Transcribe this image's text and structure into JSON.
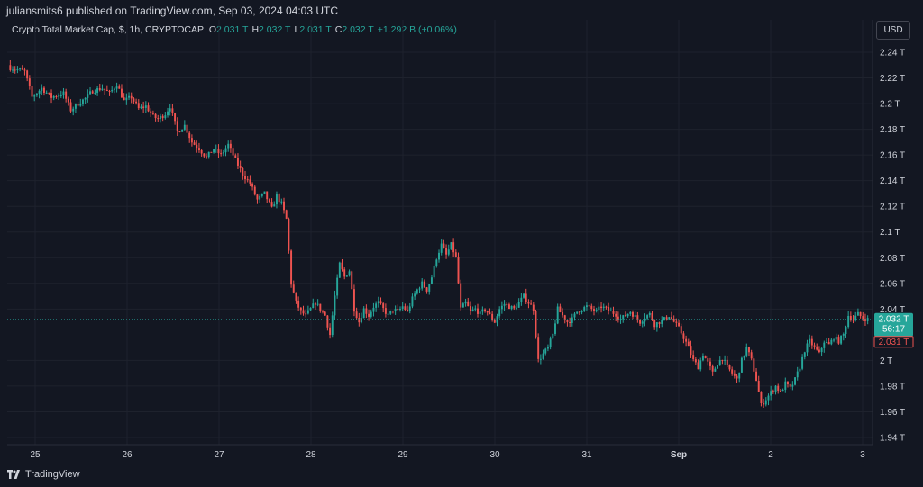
{
  "header": {
    "published_text": "juliansmits6 published on TradingView.com, Sep 03, 2024 04:03 UTC"
  },
  "legend": {
    "symbol": "Crypto Total Market Cap, $, 1h, CRYPTOCAP",
    "o_label": "O",
    "o_value": "2.031 T",
    "h_label": "H",
    "h_value": "2.032 T",
    "l_label": "L",
    "l_value": "2.031 T",
    "c_label": "C",
    "c_value": "2.032 T",
    "change": "+1.292 B (+0.06%)"
  },
  "currency_button": "USD",
  "price_labels": {
    "current": "2.032 T",
    "countdown": "56:17",
    "low": "2.031 T"
  },
  "footer": {
    "brand": "TradingView"
  },
  "colors": {
    "background": "#131722",
    "up": "#26a69a",
    "down": "#ef5350",
    "grid": "#1e222d",
    "text": "#d1d4dc"
  },
  "chart_data": {
    "type": "candlestick",
    "title": "Crypto Total Market Cap, $, 1h, CRYPTOCAP",
    "y_unit": "T",
    "ylim": [
      1.93,
      2.25
    ],
    "y_ticks": [
      "2.24 T",
      "2.22 T",
      "2.2 T",
      "2.18 T",
      "2.16 T",
      "2.14 T",
      "2.12 T",
      "2.1 T",
      "2.08 T",
      "2.06 T",
      "2.04 T",
      "2 T",
      "1.98 T",
      "1.96 T",
      "1.94 T"
    ],
    "y_tick_values": [
      2.24,
      2.22,
      2.2,
      2.18,
      2.16,
      2.14,
      2.12,
      2.1,
      2.08,
      2.06,
      2.04,
      2.0,
      1.98,
      1.96,
      1.94
    ],
    "x_ticks": [
      "25",
      "26",
      "27",
      "28",
      "29",
      "30",
      "31",
      "Sep",
      "2",
      "3"
    ],
    "grid": true,
    "last_price": 2.032,
    "close_path": [
      [
        0,
        2.228
      ],
      [
        6,
        2.225
      ],
      [
        9,
        2.205
      ],
      [
        13,
        2.212
      ],
      [
        17,
        2.205
      ],
      [
        22,
        2.208
      ],
      [
        25,
        2.195
      ],
      [
        28,
        2.2
      ],
      [
        31,
        2.204
      ],
      [
        34,
        2.21
      ],
      [
        38,
        2.212
      ],
      [
        41,
        2.208
      ],
      [
        44,
        2.215
      ],
      [
        47,
        2.202
      ],
      [
        50,
        2.205
      ],
      [
        53,
        2.196
      ],
      [
        56,
        2.198
      ],
      [
        59,
        2.19
      ],
      [
        61,
        2.188
      ],
      [
        64,
        2.192
      ],
      [
        66,
        2.198
      ],
      [
        69,
        2.178
      ],
      [
        72,
        2.183
      ],
      [
        75,
        2.17
      ],
      [
        78,
        2.165
      ],
      [
        81,
        2.158
      ],
      [
        84,
        2.165
      ],
      [
        87,
        2.16
      ],
      [
        90,
        2.168
      ],
      [
        93,
        2.156
      ],
      [
        96,
        2.145
      ],
      [
        99,
        2.138
      ],
      [
        102,
        2.125
      ],
      [
        105,
        2.13
      ],
      [
        108,
        2.118
      ],
      [
        110,
        2.128
      ],
      [
        112,
        2.122
      ],
      [
        114,
        2.11
      ],
      [
        116,
        2.06
      ],
      [
        118,
        2.045
      ],
      [
        120,
        2.038
      ],
      [
        122,
        2.035
      ],
      [
        124,
        2.04
      ],
      [
        126,
        2.045
      ],
      [
        128,
        2.04
      ],
      [
        130,
        2.035
      ],
      [
        132,
        2.02
      ],
      [
        134,
        2.05
      ],
      [
        136,
        2.075
      ],
      [
        138,
        2.065
      ],
      [
        140,
        2.07
      ],
      [
        142,
        2.04
      ],
      [
        144,
        2.03
      ],
      [
        146,
        2.04
      ],
      [
        148,
        2.035
      ],
      [
        150,
        2.042
      ],
      [
        152,
        2.045
      ],
      [
        154,
        2.04
      ],
      [
        156,
        2.035
      ],
      [
        158,
        2.04
      ],
      [
        160,
        2.038
      ],
      [
        162,
        2.042
      ],
      [
        164,
        2.038
      ],
      [
        166,
        2.048
      ],
      [
        168,
        2.055
      ],
      [
        170,
        2.06
      ],
      [
        172,
        2.055
      ],
      [
        174,
        2.065
      ],
      [
        176,
        2.08
      ],
      [
        178,
        2.09
      ],
      [
        180,
        2.082
      ],
      [
        182,
        2.09
      ],
      [
        184,
        2.08
      ],
      [
        186,
        2.04
      ],
      [
        188,
        2.045
      ],
      [
        190,
        2.038
      ],
      [
        192,
        2.04
      ],
      [
        194,
        2.036
      ],
      [
        196,
        2.04
      ],
      [
        198,
        2.035
      ],
      [
        200,
        2.03
      ],
      [
        202,
        2.04
      ],
      [
        204,
        2.044
      ],
      [
        206,
        2.042
      ],
      [
        208,
        2.04
      ],
      [
        210,
        2.045
      ],
      [
        212,
        2.05
      ],
      [
        214,
        2.045
      ],
      [
        216,
        2.04
      ],
      [
        218,
        2.0
      ],
      [
        220,
        2.005
      ],
      [
        222,
        2.01
      ],
      [
        224,
        2.02
      ],
      [
        226,
        2.04
      ],
      [
        228,
        2.035
      ],
      [
        230,
        2.03
      ],
      [
        232,
        2.032
      ],
      [
        234,
        2.038
      ],
      [
        236,
        2.04
      ],
      [
        238,
        2.042
      ],
      [
        240,
        2.04
      ],
      [
        242,
        2.038
      ],
      [
        244,
        2.042
      ],
      [
        246,
        2.04
      ],
      [
        248,
        2.038
      ],
      [
        250,
        2.036
      ],
      [
        252,
        2.032
      ],
      [
        254,
        2.035
      ],
      [
        256,
        2.038
      ],
      [
        258,
        2.034
      ],
      [
        260,
        2.03
      ],
      [
        262,
        2.034
      ],
      [
        264,
        2.036
      ],
      [
        266,
        2.028
      ],
      [
        268,
        2.03
      ],
      [
        270,
        2.032
      ],
      [
        272,
        2.035
      ],
      [
        274,
        2.03
      ],
      [
        276,
        2.025
      ],
      [
        278,
        2.018
      ],
      [
        280,
        2.01
      ],
      [
        282,
        2.0
      ],
      [
        284,
        1.995
      ],
      [
        286,
        2.005
      ],
      [
        288,
        1.998
      ],
      [
        290,
        1.99
      ],
      [
        292,
        1.998
      ],
      [
        294,
        2.002
      ],
      [
        296,
        1.995
      ],
      [
        298,
        1.99
      ],
      [
        300,
        1.985
      ],
      [
        302,
        2.0
      ],
      [
        304,
        2.01
      ],
      [
        306,
        2.0
      ],
      [
        308,
        1.985
      ],
      [
        310,
        1.965
      ],
      [
        312,
        1.97
      ],
      [
        314,
        1.975
      ],
      [
        316,
        1.98
      ],
      [
        318,
        1.975
      ],
      [
        320,
        1.982
      ],
      [
        322,
        1.978
      ],
      [
        324,
        1.985
      ],
      [
        326,
        1.995
      ],
      [
        328,
        2.008
      ],
      [
        330,
        2.015
      ],
      [
        332,
        2.01
      ],
      [
        334,
        2.005
      ],
      [
        336,
        2.015
      ],
      [
        338,
        2.012
      ],
      [
        340,
        2.018
      ],
      [
        342,
        2.015
      ],
      [
        344,
        2.02
      ],
      [
        346,
        2.035
      ],
      [
        348,
        2.032
      ],
      [
        350,
        2.036
      ],
      [
        352,
        2.033
      ],
      [
        354,
        2.032
      ]
    ]
  }
}
